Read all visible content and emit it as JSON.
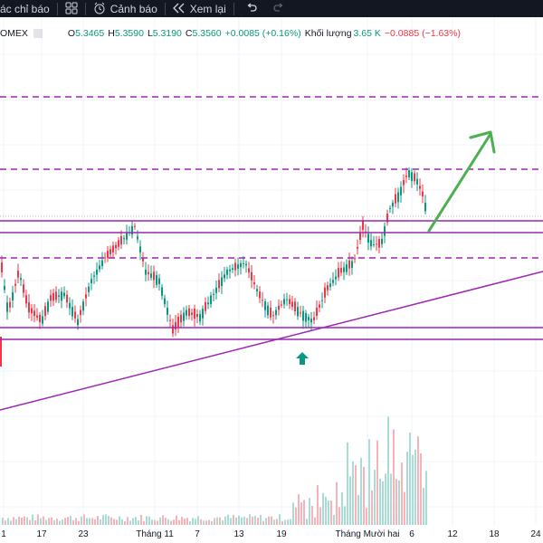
{
  "toolbar": {
    "indicators_label": "ác chỉ báo",
    "alerts_label": "Cảnh báo",
    "replay_label": "Xem lại"
  },
  "legend": {
    "symbol": "OMEX",
    "open": "5.3465",
    "high": "5.3590",
    "low": "5.3190",
    "close": "5.3560",
    "change": "+0.0085 (+0.16%)",
    "volume_label": "Khối lượng",
    "volume_value": "3.65 K",
    "volume_change": "−0.0885 (−1.63%)"
  },
  "time_axis": [
    "1",
    "17",
    "23",
    "Tháng 11",
    "7",
    "13",
    "19",
    "Tháng Mười hai",
    "6",
    "12",
    "18",
    "24"
  ],
  "colors": {
    "up": "#089981",
    "down": "#f23645",
    "drawing": "#9c27b0",
    "arrow": "#4caf50"
  },
  "chart_data": {
    "type": "candlestick",
    "series": [
      {
        "name": "Khối lượng",
        "type": "bar"
      }
    ],
    "annotations": [
      "horizontal support lines",
      "dashed resistance lines",
      "ascending trendline",
      "upward arrow"
    ]
  }
}
